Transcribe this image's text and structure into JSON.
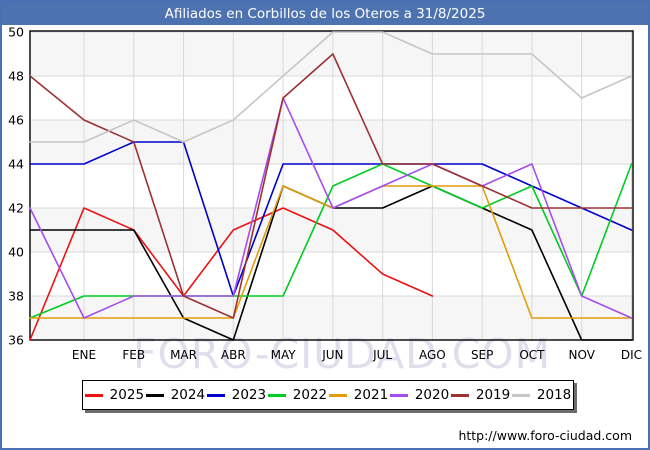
{
  "window": {
    "border_color": "#4a6fb5",
    "background": "#ffffff"
  },
  "title_bar": {
    "text": "Afiliados en Corbillos de los Oteros a 31/8/2025",
    "background": "#4d72b0",
    "text_color": "#ffffff"
  },
  "watermark": {
    "text": "FORO-CIUDAD.COM",
    "color": "#dedeed"
  },
  "footer": {
    "url": "http://www.foro-ciudad.com"
  },
  "chart_data": {
    "type": "line",
    "title": "Afiliados en Corbillos de los Oteros a 31/8/2025",
    "x_categories": [
      "ENE",
      "FEB",
      "MAR",
      "ABR",
      "MAY",
      "JUN",
      "JUL",
      "AGO",
      "SEP",
      "OCT",
      "NOV",
      "DIC"
    ],
    "x_note": "Each series has 13 points: the first is plotted at the left axis edge (previous December value), followed by ENE..DIC at the vertical gridlines. 2025 series ends at AGO (data to 31/8/2025).",
    "ylim": [
      36,
      50
    ],
    "yticks": [
      36,
      38,
      40,
      42,
      44,
      46,
      48,
      50
    ],
    "grid": true,
    "band_fill_pairs": [
      [
        50,
        48
      ],
      [
        46,
        44
      ],
      [
        42,
        40
      ],
      [
        38,
        36
      ]
    ],
    "band_color": "#f6f6f6",
    "grid_color": "#d9d9d9",
    "legend_position": "bottom",
    "series": [
      {
        "name": "2025",
        "color": "#ee1111",
        "values": [
          36,
          42,
          41,
          38,
          41,
          42,
          41,
          39,
          38,
          null,
          null,
          null,
          null
        ]
      },
      {
        "name": "2024",
        "color": "#000000",
        "values": [
          41,
          41,
          41,
          37,
          36,
          43,
          42,
          42,
          43,
          42,
          41,
          36,
          36
        ]
      },
      {
        "name": "2023",
        "color": "#0000cc",
        "values": [
          44,
          44,
          45,
          45,
          38,
          44,
          44,
          44,
          44,
          44,
          43,
          42,
          41
        ]
      },
      {
        "name": "2022",
        "color": "#00cc22",
        "values": [
          37,
          38,
          38,
          38,
          38,
          38,
          43,
          44,
          43,
          42,
          43,
          38,
          44
        ]
      },
      {
        "name": "2021",
        "color": "#e39c0a",
        "values": [
          37,
          37,
          37,
          37,
          37,
          43,
          42,
          43,
          43,
          43,
          37,
          37,
          37
        ]
      },
      {
        "name": "2020",
        "color": "#a64dee",
        "values": [
          42,
          37,
          38,
          38,
          38,
          47,
          42,
          43,
          44,
          43,
          44,
          38,
          37
        ]
      },
      {
        "name": "2019",
        "color": "#9c3232",
        "values": [
          48,
          46,
          45,
          38,
          37,
          47,
          49,
          44,
          44,
          43,
          42,
          42,
          42
        ]
      },
      {
        "name": "2018",
        "color": "#c6c6c6",
        "values": [
          45,
          45,
          46,
          45,
          46,
          48,
          50,
          50,
          49,
          49,
          49,
          47,
          48
        ]
      }
    ]
  }
}
